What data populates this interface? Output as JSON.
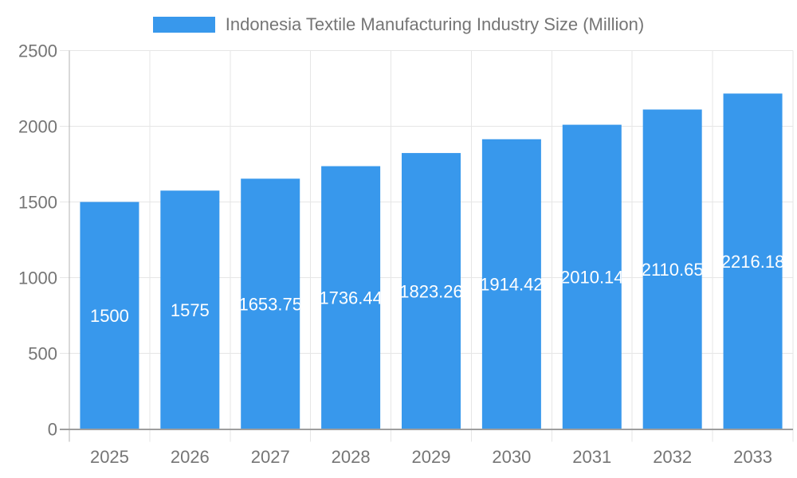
{
  "chart_data": {
    "type": "bar",
    "title": "Indonesia Textile Manufacturing Industry Size (Million)",
    "legend_position": "top",
    "categories": [
      "2025",
      "2026",
      "2027",
      "2028",
      "2029",
      "2030",
      "2031",
      "2032",
      "2033"
    ],
    "series": [
      {
        "name": "Indonesia Textile Manufacturing Industry Size (Million)",
        "values": [
          1500,
          1575,
          1653.75,
          1736.44,
          1823.26,
          1914.42,
          2010.14,
          2110.65,
          2216.18
        ]
      }
    ],
    "value_labels": [
      "1500",
      "1575",
      "1653.75",
      "1736.44",
      "1823.26",
      "1914.42",
      "2010.14",
      "2110.65",
      "2216.18"
    ],
    "xlabel": "",
    "ylabel": "",
    "ylim": [
      0,
      2500
    ],
    "yticks": [
      0,
      500,
      1000,
      1500,
      2000,
      2500
    ],
    "grid": true,
    "colors": {
      "bar": "#3898EC",
      "value_label": "#FFFFFF",
      "axis_text": "#757575",
      "gridline": "#E6E6E6",
      "baseline": "#9E9E9E",
      "yaxis_line": "#B3B3B3",
      "background": "#FFFFFF"
    }
  }
}
